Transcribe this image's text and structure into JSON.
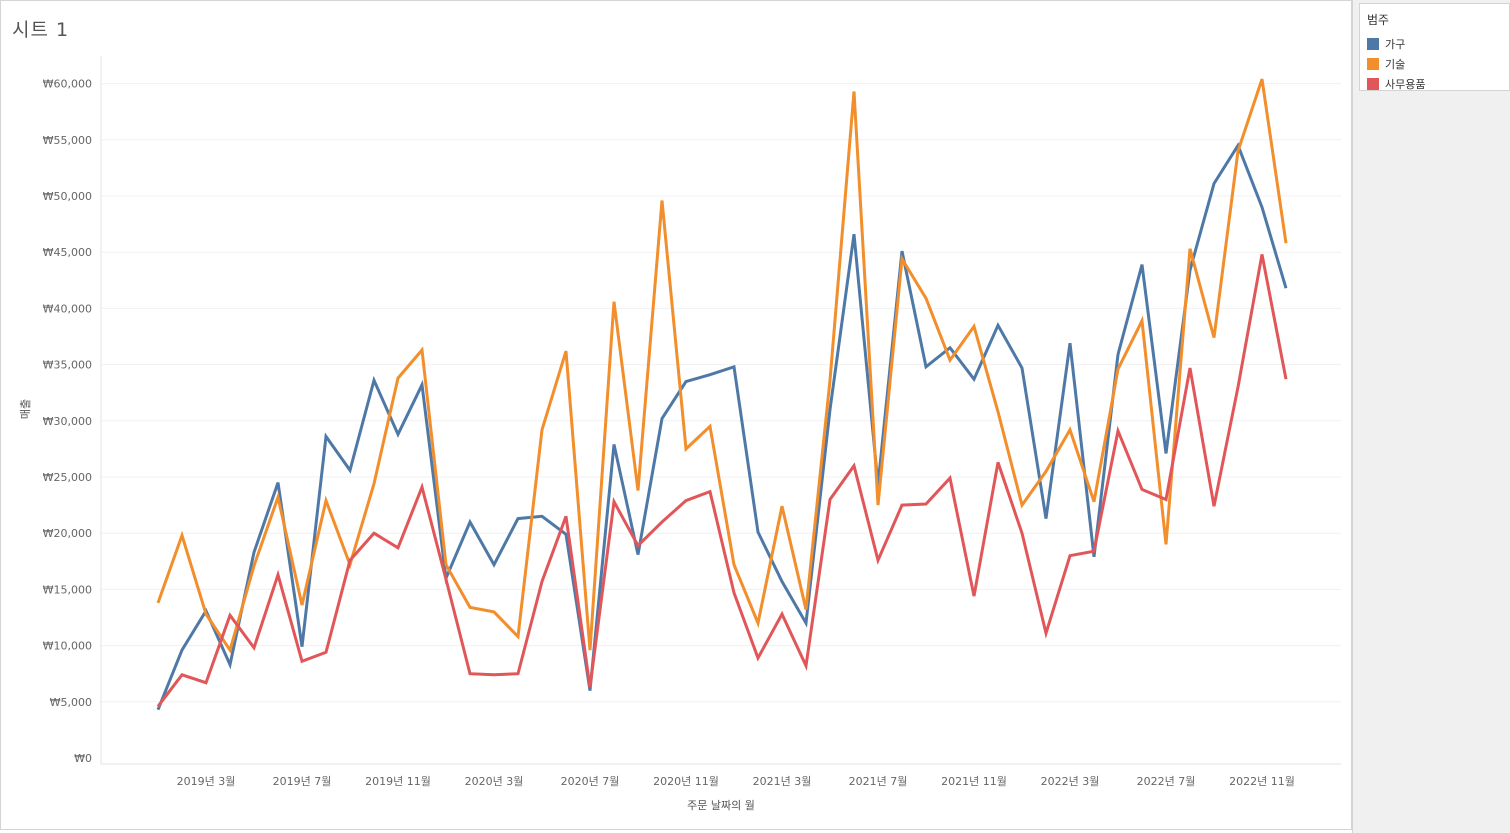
{
  "sheet": {
    "title": "시트 1"
  },
  "legend": {
    "title": "범주",
    "items": [
      {
        "label": "가구",
        "color": "#4e79a7"
      },
      {
        "label": "기술",
        "color": "#f28e2b"
      },
      {
        "label": "사무용품",
        "color": "#e15759"
      }
    ]
  },
  "chart_data": {
    "type": "line",
    "xlabel": "주문 날짜의 월",
    "ylabel": "매출",
    "ylim": [
      0,
      65000
    ],
    "y_ticks": [
      0,
      5000,
      10000,
      15000,
      20000,
      25000,
      30000,
      35000,
      40000,
      45000,
      50000,
      55000,
      60000
    ],
    "y_tick_labels": [
      "₩0",
      "₩5,000",
      "₩10,000",
      "₩15,000",
      "₩20,000",
      "₩25,000",
      "₩30,000",
      "₩35,000",
      "₩40,000",
      "₩45,000",
      "₩50,000",
      "₩55,000",
      "₩60,000"
    ],
    "x": [
      "2019-01",
      "2019-02",
      "2019-03",
      "2019-04",
      "2019-05",
      "2019-06",
      "2019-07",
      "2019-08",
      "2019-09",
      "2019-10",
      "2019-11",
      "2019-12",
      "2020-01",
      "2020-02",
      "2020-03",
      "2020-04",
      "2020-05",
      "2020-06",
      "2020-07",
      "2020-08",
      "2020-09",
      "2020-10",
      "2020-11",
      "2020-12",
      "2021-01",
      "2021-02",
      "2021-03",
      "2021-04",
      "2021-05",
      "2021-06",
      "2021-07",
      "2021-08",
      "2021-09",
      "2021-10",
      "2021-11",
      "2021-12",
      "2022-01",
      "2022-02",
      "2022-03",
      "2022-04",
      "2022-05",
      "2022-06",
      "2022-07",
      "2022-08",
      "2022-09",
      "2022-10",
      "2022-11",
      "2022-12"
    ],
    "x_tick_labels": [
      {
        "index": 2,
        "label": "2019년 3월"
      },
      {
        "index": 6,
        "label": "2019년 7월"
      },
      {
        "index": 10,
        "label": "2019년 11월"
      },
      {
        "index": 14,
        "label": "2020년 3월"
      },
      {
        "index": 18,
        "label": "2020년 7월"
      },
      {
        "index": 22,
        "label": "2020년 11월"
      },
      {
        "index": 26,
        "label": "2021년 3월"
      },
      {
        "index": 30,
        "label": "2021년 7월"
      },
      {
        "index": 34,
        "label": "2021년 11월"
      },
      {
        "index": 38,
        "label": "2022년 3월"
      },
      {
        "index": 42,
        "label": "2022년 7월"
      },
      {
        "index": 46,
        "label": "2022년 11월"
      }
    ],
    "grid": true,
    "legend_position": "right",
    "series": [
      {
        "name": "가구",
        "color": "#4e79a7",
        "values": [
          4300,
          9600,
          13100,
          8300,
          18300,
          24500,
          9900,
          28600,
          25600,
          33600,
          28800,
          33200,
          16000,
          21000,
          17200,
          21300,
          21500,
          19900,
          6000,
          27900,
          18100,
          30200,
          33500,
          34100,
          34800,
          20100,
          15700,
          12000,
          31000,
          46600,
          24300,
          45100,
          34800,
          36500,
          33700,
          38500,
          34700,
          21300,
          36900,
          17900,
          35900,
          43900,
          27100,
          43400,
          51100,
          54500,
          49000,
          41800
        ]
      },
      {
        "name": "기술",
        "color": "#f28e2b",
        "values": [
          13800,
          19800,
          12800,
          9600,
          17100,
          23200,
          13600,
          22900,
          17200,
          24400,
          33800,
          36300,
          17200,
          13400,
          13000,
          10800,
          29200,
          36200,
          9600,
          40600,
          23800,
          49600,
          27500,
          29500,
          17200,
          12000,
          22400,
          13200,
          33600,
          59300,
          22500,
          44400,
          40900,
          35400,
          38400,
          30800,
          22500,
          25500,
          29200,
          22800,
          34600,
          38900,
          19000,
          45300,
          37400,
          54000,
          60400,
          45800
        ]
      },
      {
        "name": "사무용품",
        "color": "#e15759",
        "values": [
          4600,
          7400,
          6700,
          12700,
          9800,
          16300,
          8600,
          9400,
          17600,
          20000,
          18700,
          24100,
          15900,
          7500,
          7400,
          7500,
          15700,
          21500,
          6300,
          22800,
          18900,
          21000,
          22900,
          23700,
          14700,
          8900,
          12800,
          8200,
          23000,
          26000,
          17600,
          22500,
          22600,
          24900,
          14400,
          26300,
          20000,
          11100,
          18000,
          18400,
          29100,
          23900,
          23000,
          34700,
          22400,
          33000,
          44800,
          33700
        ]
      }
    ]
  }
}
